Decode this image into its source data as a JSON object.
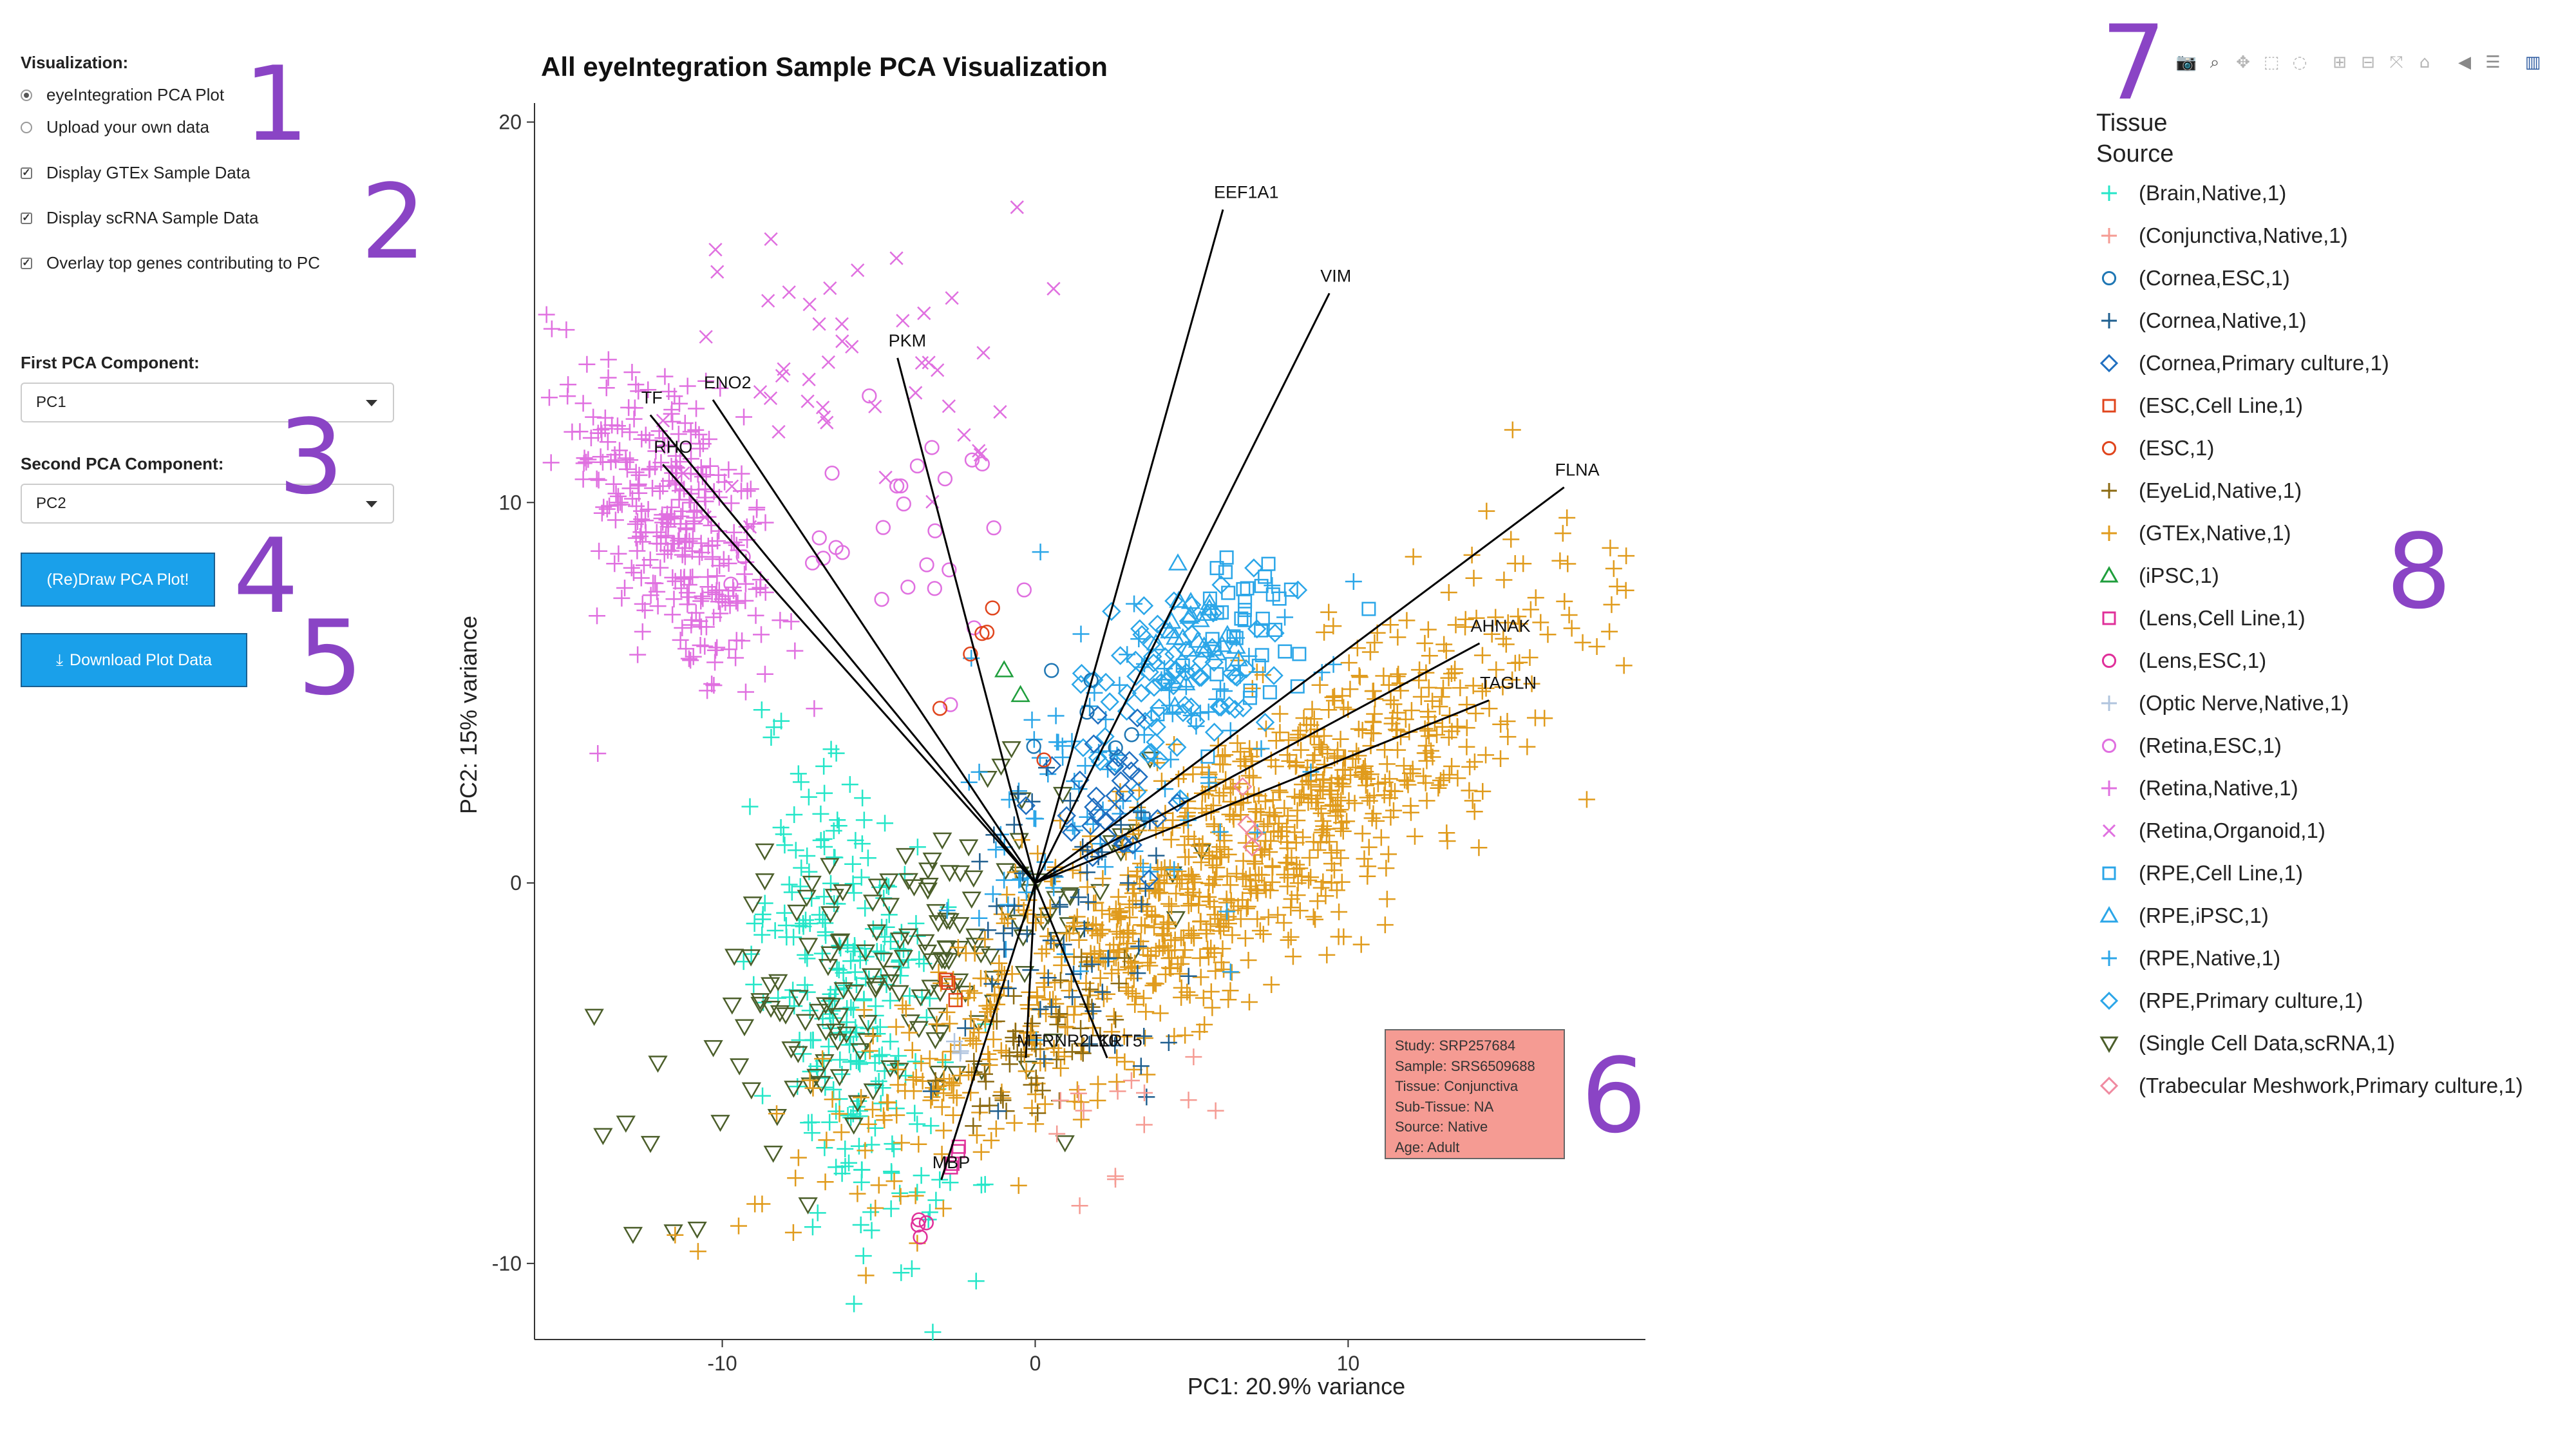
{
  "sidebar": {
    "visualization_label": "Visualization:",
    "radio_options": [
      {
        "label": "eyeIntegration PCA Plot",
        "selected": true
      },
      {
        "label": "Upload your own data",
        "selected": false
      }
    ],
    "checkboxes": [
      {
        "label": "Display GTEx Sample Data",
        "checked": true
      },
      {
        "label": "Display scRNA Sample Data",
        "checked": true
      },
      {
        "label": "Overlay top genes contributing to PC",
        "checked": true
      }
    ],
    "first_pca_label": "First PCA Component:",
    "first_pca_value": "PC1",
    "second_pca_label": "Second PCA Component:",
    "second_pca_value": "PC2",
    "draw_button": "(Re)Draw PCA Plot!",
    "download_button": "Download Plot Data",
    "download_icon": "download-icon"
  },
  "annotations": [
    "1",
    "2",
    "3",
    "4",
    "5",
    "6",
    "7",
    "8"
  ],
  "modebar": [
    "camera-icon",
    "zoom-icon",
    "pan-icon",
    "box-select-icon",
    "lasso-icon",
    "zoom-in-icon",
    "zoom-out-icon",
    "autoscale-icon",
    "reset-axes-icon",
    "spike-lines-icon",
    "compare-hover-icon",
    "plotly-logo-icon"
  ],
  "legend": {
    "title_line1": "Tissue",
    "title_line2": "Source",
    "items": [
      {
        "label": "(Brain,Native,1)",
        "color": "#25e6c8",
        "symbol": "plus"
      },
      {
        "label": "(Conjunctiva,Native,1)",
        "color": "#f59b93",
        "symbol": "plus"
      },
      {
        "label": "(Cornea,ESC,1)",
        "color": "#1f77b4",
        "symbol": "circle"
      },
      {
        "label": "(Cornea,Native,1)",
        "color": "#1f5f8f",
        "symbol": "plus"
      },
      {
        "label": "(Cornea,Primary culture,1)",
        "color": "#1f6fc0",
        "symbol": "diamond"
      },
      {
        "label": "(ESC,Cell Line,1)",
        "color": "#e0451d",
        "symbol": "square"
      },
      {
        "label": "(ESC,1)",
        "color": "#e0451d",
        "symbol": "circle"
      },
      {
        "label": "(EyeLid,Native,1)",
        "color": "#8b6a12",
        "symbol": "plus"
      },
      {
        "label": "(GTEx,Native,1)",
        "color": "#e09b1c",
        "symbol": "plus"
      },
      {
        "label": "(iPSC,1)",
        "color": "#1f9e3c",
        "symbol": "triangle-up"
      },
      {
        "label": "(Lens,Cell Line,1)",
        "color": "#e0309a",
        "symbol": "square"
      },
      {
        "label": "(Lens,ESC,1)",
        "color": "#e0309a",
        "symbol": "circle"
      },
      {
        "label": "(Optic Nerve,Native,1)",
        "color": "#b0c4de",
        "symbol": "plus"
      },
      {
        "label": "(Retina,ESC,1)",
        "color": "#e070e0",
        "symbol": "circle"
      },
      {
        "label": "(Retina,Native,1)",
        "color": "#e070e0",
        "symbol": "plus"
      },
      {
        "label": "(Retina,Organoid,1)",
        "color": "#e070e0",
        "symbol": "x"
      },
      {
        "label": "(RPE,Cell Line,1)",
        "color": "#2ba6e8",
        "symbol": "square"
      },
      {
        "label": "(RPE,iPSC,1)",
        "color": "#2ba6e8",
        "symbol": "triangle-up"
      },
      {
        "label": "(RPE,Native,1)",
        "color": "#2ba6e8",
        "symbol": "plus"
      },
      {
        "label": "(RPE,Primary culture,1)",
        "color": "#2ba6e8",
        "symbol": "diamond"
      },
      {
        "label": "(Single Cell Data,scRNA,1)",
        "color": "#4b5e2a",
        "symbol": "triangle-down"
      },
      {
        "label": "(Trabecular Meshwork,Primary culture,1)",
        "color": "#f08aa0",
        "symbol": "diamond"
      }
    ]
  },
  "tooltip": {
    "lines": [
      "Study:  SRP257684",
      "Sample:  SRS6509688",
      "Tissue:  Conjunctiva",
      "Sub-Tissue:  NA",
      "Source:  Native",
      "Age:  Adult"
    ],
    "color": "#f59b93"
  },
  "chart_data": {
    "type": "scatter",
    "title": "All eyeIntegration Sample PCA Visualization",
    "xlabel": "PC1: 20.9% variance",
    "ylabel": "PC2: 15% variance",
    "xlim": [
      -16,
      19.5
    ],
    "ylim": [
      -12,
      20.5
    ],
    "xticks": [
      -10,
      0,
      10
    ],
    "yticks": [
      -10,
      0,
      10,
      20
    ],
    "gene_vectors": [
      {
        "gene": "EEF1A1",
        "x": 6.0,
        "y": 17.7
      },
      {
        "gene": "VIM",
        "x": 9.4,
        "y": 15.5
      },
      {
        "gene": "FLNA",
        "x": 16.9,
        "y": 10.4
      },
      {
        "gene": "AHNAK",
        "x": 14.2,
        "y": 6.3
      },
      {
        "gene": "TAGLN",
        "x": 14.5,
        "y": 4.8
      },
      {
        "gene": "PKM",
        "x": -4.4,
        "y": 13.8
      },
      {
        "gene": "ENO2",
        "x": -10.3,
        "y": 12.7
      },
      {
        "gene": "TF",
        "x": -12.3,
        "y": 12.3
      },
      {
        "gene": "RHO",
        "x": -11.9,
        "y": 11.0
      },
      {
        "gene": "MTRNR2L10",
        "x": -0.3,
        "y": -4.6
      },
      {
        "gene": "KRT5",
        "x": 2.3,
        "y": -4.6
      },
      {
        "gene": "MBP",
        "x": -3.0,
        "y": -7.8
      }
    ],
    "clusters": [
      {
        "name": "(Retina,Native,1)",
        "cx": -11.5,
        "cy": 9.5,
        "sx": 1.6,
        "sy": 2.3,
        "rho": -0.55,
        "n": 320
      },
      {
        "name": "(Retina,Organoid,1)",
        "cx": -6.0,
        "cy": 13.5,
        "sx": 2.8,
        "sy": 2.0,
        "rho": 0.1,
        "n": 48
      },
      {
        "name": "(Retina,ESC,1)",
        "cx": -5.0,
        "cy": 9.0,
        "sx": 2.5,
        "sy": 1.5,
        "rho": 0.0,
        "n": 28
      },
      {
        "name": "(Brain,Native,1)",
        "cx": -5.8,
        "cy": -3.2,
        "sx": 1.4,
        "sy": 3.2,
        "rho": -0.45,
        "n": 260
      },
      {
        "name": "(Single Cell Data,scRNA,1)",
        "cx": -4.5,
        "cy": -2.6,
        "sx": 4.0,
        "sy": 2.4,
        "rho": 0.55,
        "n": 170
      },
      {
        "name": "(GTEx,Native,1)",
        "cx": 6.0,
        "cy": 0.5,
        "sx": 5.6,
        "sy": 3.7,
        "rho": 0.88,
        "n": 1000
      },
      {
        "name": "(EyeLid,Native,1)",
        "cx": 0.0,
        "cy": -4.5,
        "sx": 1.6,
        "sy": 1.6,
        "rho": 0.5,
        "n": 45
      },
      {
        "name": "(RPE,Native,1)",
        "cx": 3.0,
        "cy": 3.0,
        "sx": 2.5,
        "sy": 2.5,
        "rho": 0.3,
        "n": 110
      },
      {
        "name": "(RPE,Primary culture,1)",
        "cx": 4.5,
        "cy": 5.5,
        "sx": 1.6,
        "sy": 1.2,
        "rho": 0.3,
        "n": 80
      },
      {
        "name": "(RPE,Cell Line,1)",
        "cx": 6.5,
        "cy": 6.5,
        "sx": 1.5,
        "sy": 1.2,
        "rho": 0.0,
        "n": 40
      },
      {
        "name": "(RPE,iPSC,1)",
        "cx": 5.0,
        "cy": 6.5,
        "sx": 1.0,
        "sy": 0.8,
        "rho": 0.0,
        "n": 25
      },
      {
        "name": "(Cornea,Native,1)",
        "cx": 1.5,
        "cy": -1.0,
        "sx": 1.8,
        "sy": 2.0,
        "rho": 0.2,
        "n": 60
      },
      {
        "name": "(Cornea,Primary culture,1)",
        "cx": 2.5,
        "cy": 2.5,
        "sx": 1.2,
        "sy": 1.2,
        "rho": 0.0,
        "n": 30
      },
      {
        "name": "(Cornea,ESC,1)",
        "cx": 1.5,
        "cy": 4.0,
        "sx": 1.0,
        "sy": 1.0,
        "rho": 0.0,
        "n": 6
      },
      {
        "name": "(Conjunctiva,Native,1)",
        "cx": 3.0,
        "cy": -6.0,
        "sx": 1.3,
        "sy": 1.2,
        "rho": 0.0,
        "n": 14
      },
      {
        "name": "(ESC,1)",
        "cx": -1.8,
        "cy": 4.5,
        "sx": 0.8,
        "sy": 1.5,
        "rho": 0.0,
        "n": 6
      },
      {
        "name": "(ESC,Cell Line,1)",
        "cx": -2.5,
        "cy": -2.8,
        "sx": 0.4,
        "sy": 0.4,
        "rho": 0.0,
        "n": 3
      },
      {
        "name": "(Lens,Cell Line,1)",
        "cx": -2.7,
        "cy": -7.0,
        "sx": 0.5,
        "sy": 0.7,
        "rho": 0.0,
        "n": 4
      },
      {
        "name": "(Lens,ESC,1)",
        "cx": -3.8,
        "cy": -9.3,
        "sx": 0.3,
        "sy": 0.3,
        "rho": 0.0,
        "n": 4
      },
      {
        "name": "(iPSC,1)",
        "cx": -0.8,
        "cy": 5.5,
        "sx": 0.3,
        "sy": 0.3,
        "rho": 0.0,
        "n": 2
      },
      {
        "name": "(Optic Nerve,Native,1)",
        "cx": -2.5,
        "cy": -4.5,
        "sx": 0.5,
        "sy": 0.5,
        "rho": 0.0,
        "n": 3
      },
      {
        "name": "(Trabecular Meshwork,Primary culture,1)",
        "cx": 6.5,
        "cy": 2.0,
        "sx": 0.5,
        "sy": 0.8,
        "rho": 0.0,
        "n": 4
      }
    ]
  }
}
